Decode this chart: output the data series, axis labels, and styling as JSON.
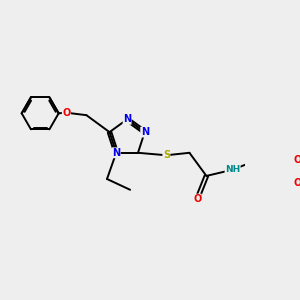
{
  "bg_color": "#eeeeee",
  "atom_colors": {
    "N": "#0000ee",
    "O": "#ee0000",
    "S": "#aaaa00",
    "H": "#008888",
    "C": "#000000"
  },
  "bond_color": "#000000",
  "bond_width": 1.4,
  "dbo": 0.018
}
